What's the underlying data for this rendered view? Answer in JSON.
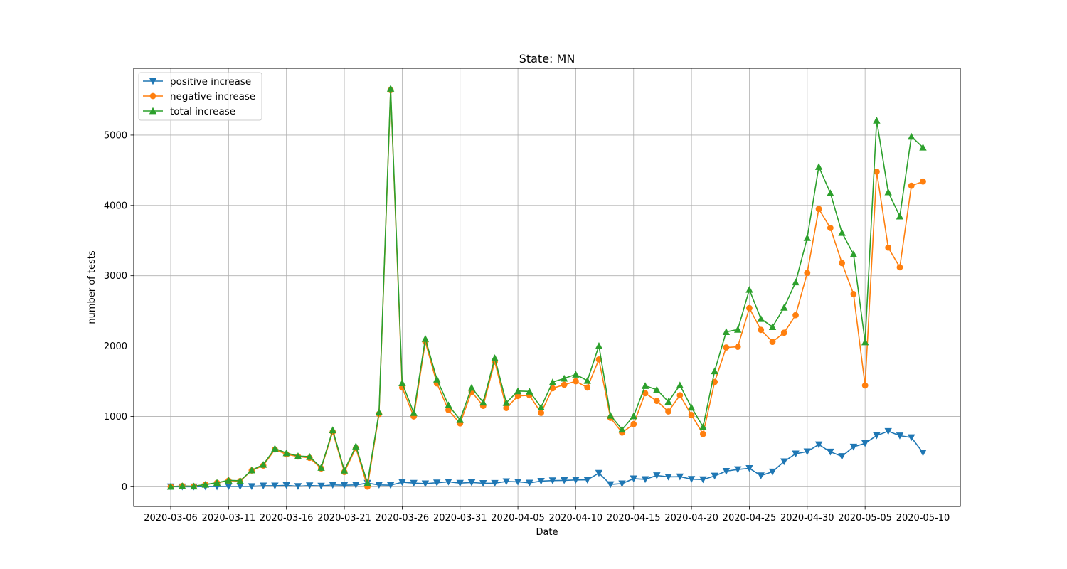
{
  "chart_data": {
    "type": "line",
    "title": "State: MN",
    "xlabel": "Date",
    "ylabel": "number of tests",
    "x_start": "2020-03-06",
    "x": [
      "2020-03-06",
      "2020-03-07",
      "2020-03-08",
      "2020-03-09",
      "2020-03-10",
      "2020-03-11",
      "2020-03-12",
      "2020-03-13",
      "2020-03-14",
      "2020-03-15",
      "2020-03-16",
      "2020-03-17",
      "2020-03-18",
      "2020-03-19",
      "2020-03-20",
      "2020-03-21",
      "2020-03-22",
      "2020-03-23",
      "2020-03-24",
      "2020-03-25",
      "2020-03-26",
      "2020-03-27",
      "2020-03-28",
      "2020-03-29",
      "2020-03-30",
      "2020-03-31",
      "2020-04-01",
      "2020-04-02",
      "2020-04-03",
      "2020-04-04",
      "2020-04-05",
      "2020-04-06",
      "2020-04-07",
      "2020-04-08",
      "2020-04-09",
      "2020-04-10",
      "2020-04-11",
      "2020-04-12",
      "2020-04-13",
      "2020-04-14",
      "2020-04-15",
      "2020-04-16",
      "2020-04-17",
      "2020-04-18",
      "2020-04-19",
      "2020-04-20",
      "2020-04-21",
      "2020-04-22",
      "2020-04-23",
      "2020-04-24",
      "2020-04-25",
      "2020-04-26",
      "2020-04-27",
      "2020-04-28",
      "2020-04-29",
      "2020-04-30",
      "2020-05-01",
      "2020-05-02",
      "2020-05-03",
      "2020-05-04",
      "2020-05-05",
      "2020-05-06",
      "2020-05-07",
      "2020-05-08",
      "2020-05-09",
      "2020-05-10"
    ],
    "x_ticks": [
      "2020-03-06",
      "2020-03-11",
      "2020-03-16",
      "2020-03-21",
      "2020-03-26",
      "2020-03-31",
      "2020-04-05",
      "2020-04-10",
      "2020-04-15",
      "2020-04-20",
      "2020-04-25",
      "2020-04-30",
      "2020-05-05",
      "2020-05-10"
    ],
    "y_ticks": [
      0,
      1000,
      2000,
      3000,
      4000,
      5000
    ],
    "ylim": [
      -280,
      5950
    ],
    "grid": true,
    "legend_position": "top-left",
    "series": [
      {
        "name": "positive increase",
        "color": "#1f77b4",
        "marker": "triangle-down",
        "values": [
          1,
          0,
          0,
          2,
          2,
          5,
          5,
          5,
          14,
          14,
          19,
          6,
          17,
          12,
          26,
          22,
          25,
          52,
          25,
          22,
          64,
          52,
          45,
          57,
          70,
          52,
          60,
          50,
          51,
          75,
          70,
          55,
          80,
          87,
          90,
          96,
          98,
          194,
          33,
          45,
          115,
          105,
          160,
          140,
          143,
          108,
          102,
          154,
          222,
          245,
          262,
          158,
          213,
          358,
          469,
          499,
          600,
          496,
          432,
          567,
          617,
          728,
          789,
          726,
          700,
          485
        ]
      },
      {
        "name": "negative increase",
        "color": "#ff7f0e",
        "marker": "circle",
        "values": [
          1,
          10,
          6,
          30,
          55,
          86,
          80,
          230,
          300,
          530,
          460,
          430,
          410,
          260,
          780,
          210,
          550,
          2,
          1035,
          5640,
          1410,
          1000,
          2060,
          1470,
          1090,
          900,
          1350,
          1150,
          1780,
          1120,
          1290,
          1300,
          1050,
          1400,
          1450,
          1500,
          1410,
          1810,
          980,
          770,
          890,
          1330,
          1220,
          1070,
          1300,
          1020,
          750,
          1490,
          1980,
          1990,
          2540,
          2230,
          2060,
          2190,
          2440,
          3040,
          3950,
          3680,
          3180,
          2740,
          1440,
          4480,
          3400,
          3120,
          4280,
          4340
        ]
      },
      {
        "name": "total increase",
        "color": "#2ca02c",
        "marker": "triangle-up",
        "values": [
          2,
          10,
          6,
          32,
          57,
          91,
          85,
          235,
          314,
          544,
          479,
          436,
          427,
          272,
          806,
          232,
          575,
          54,
          1060,
          5662,
          1474,
          1052,
          2105,
          1527,
          1160,
          952,
          1410,
          1200,
          1831,
          1195,
          1360,
          1355,
          1130,
          1487,
          1540,
          1596,
          1508,
          2004,
          1013,
          815,
          1005,
          1435,
          1380,
          1210,
          1443,
          1128,
          852,
          1644,
          2202,
          2235,
          2802,
          2388,
          2273,
          2548,
          2909,
          3539,
          4550,
          4176,
          3612,
          3307,
          2057,
          5208,
          4189,
          3846,
          4980,
          4825
        ]
      }
    ]
  }
}
